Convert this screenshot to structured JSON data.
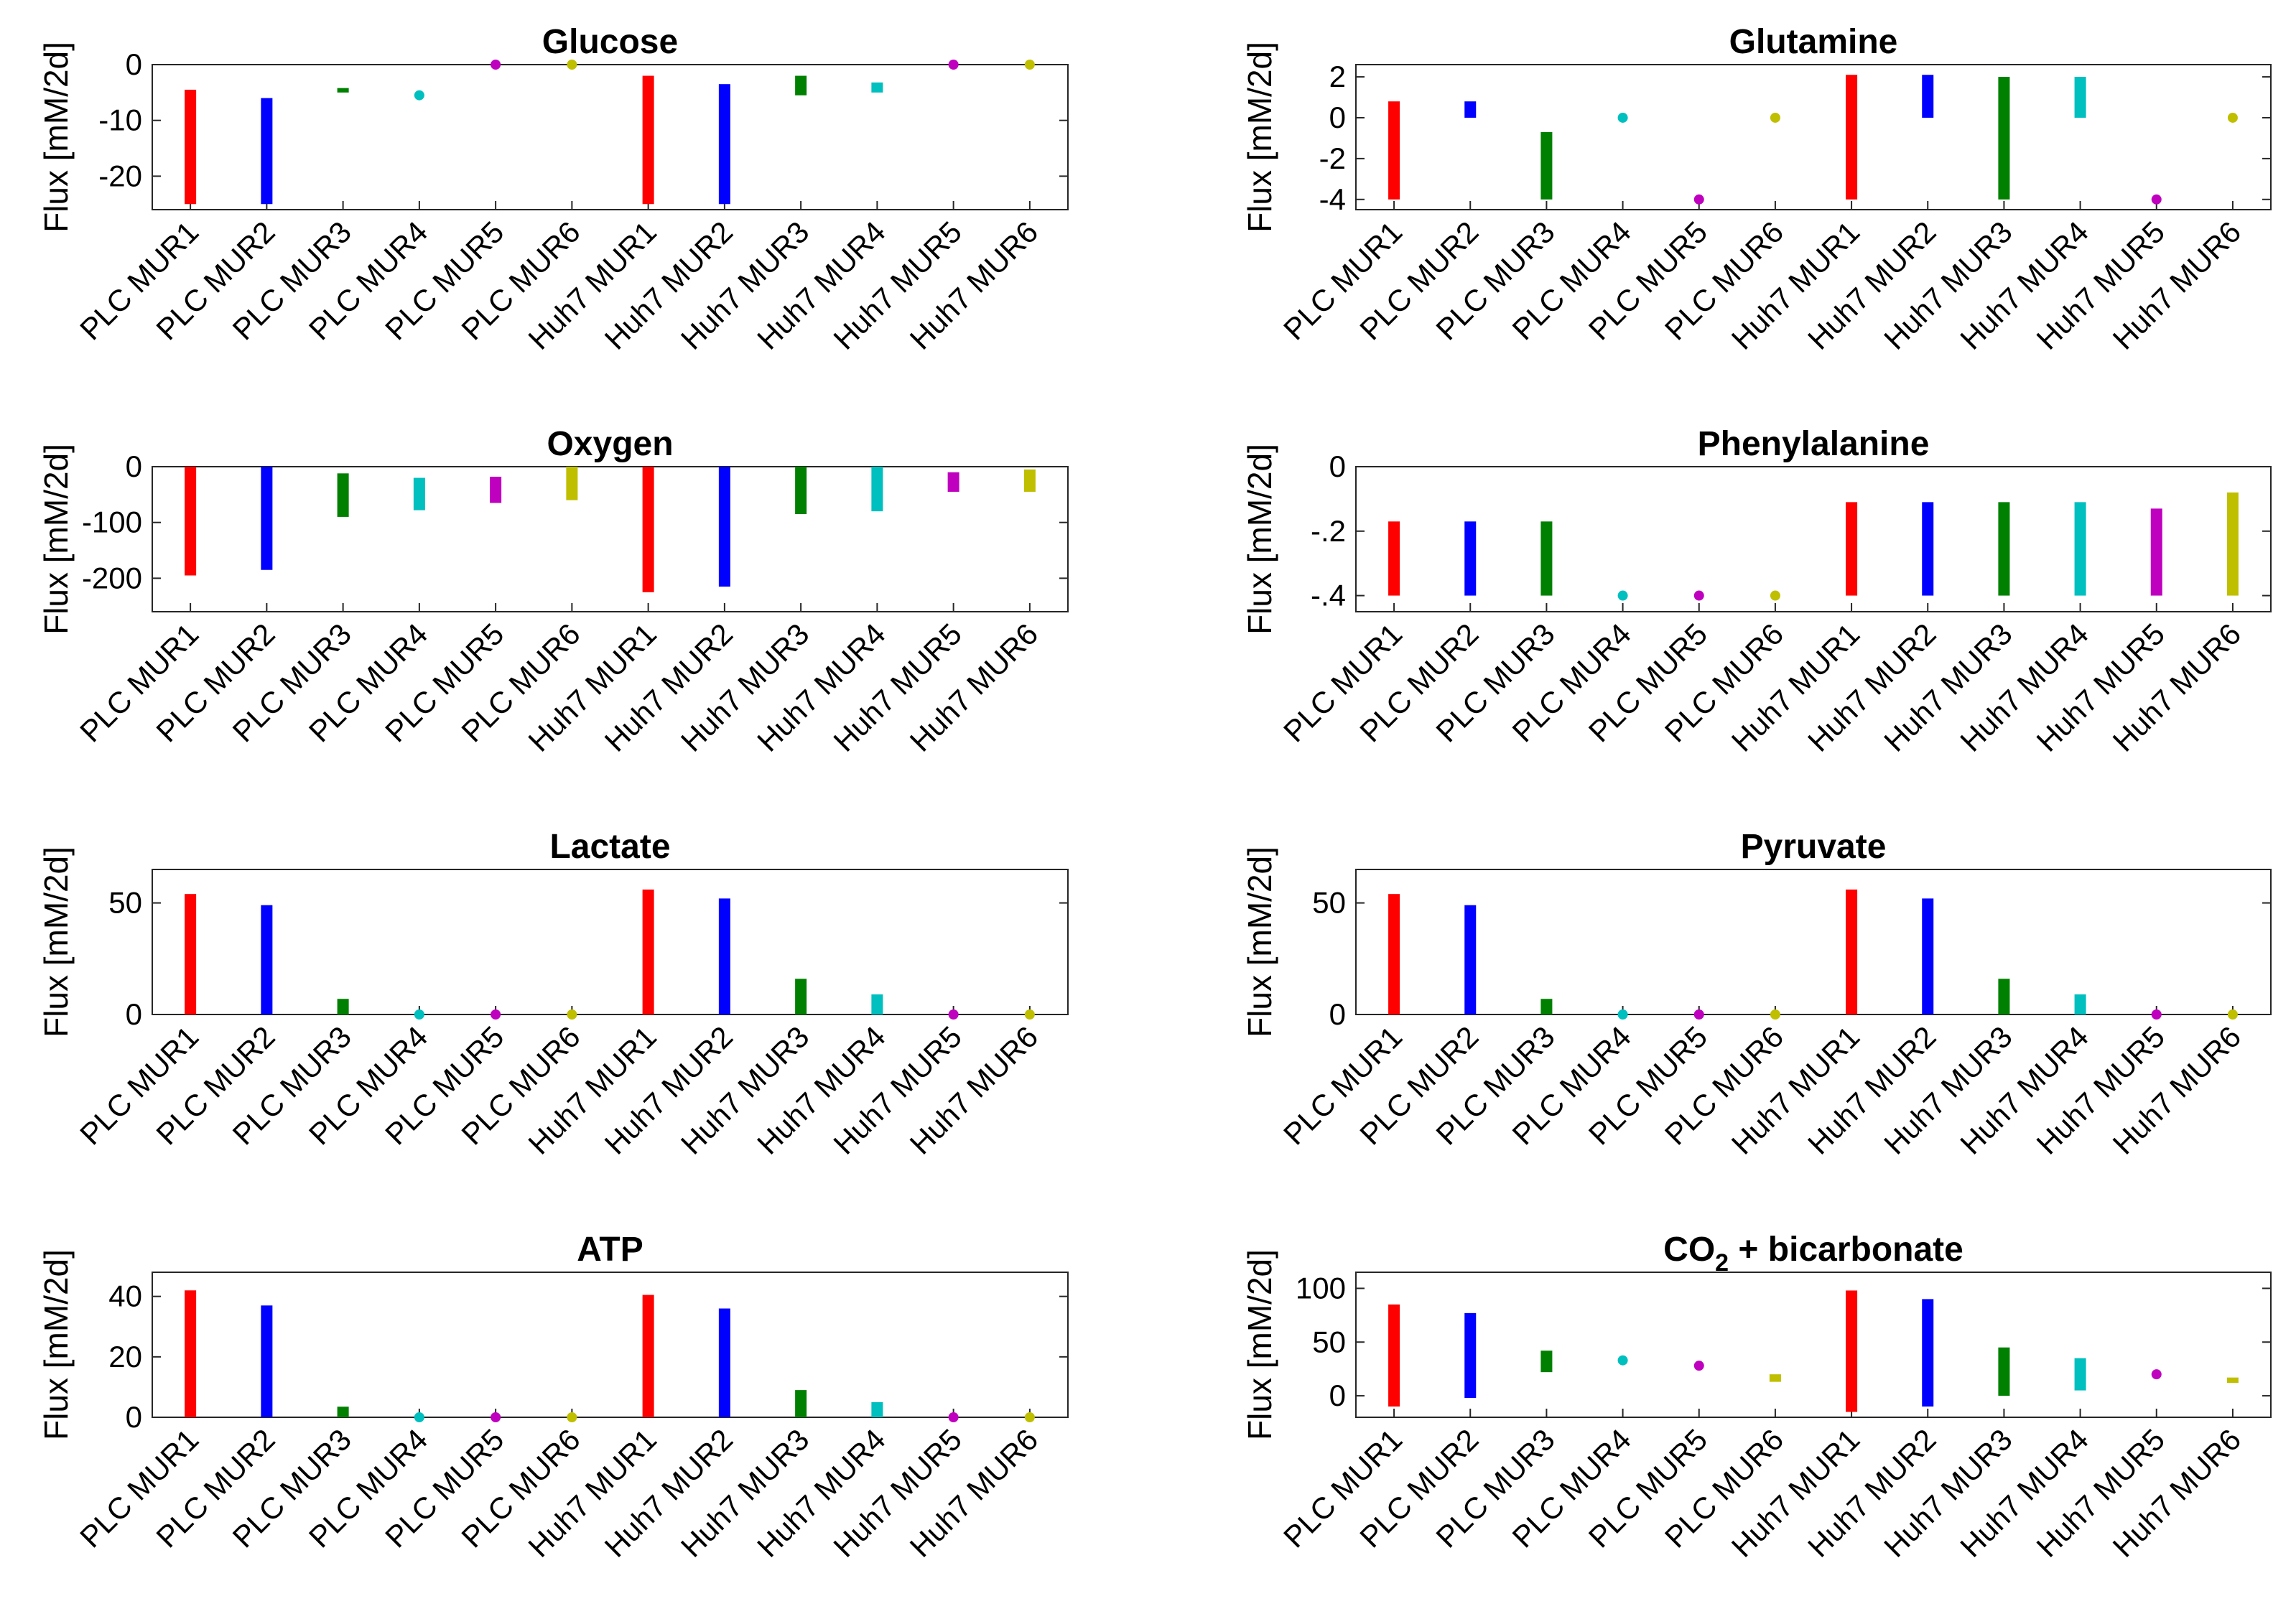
{
  "categories": [
    "PLC MUR1",
    "PLC MUR2",
    "PLC MUR3",
    "PLC MUR4",
    "PLC MUR5",
    "PLC MUR6",
    "Huh7 MUR1",
    "Huh7 MUR2",
    "Huh7 MUR3",
    "Huh7 MUR4",
    "Huh7 MUR5",
    "Huh7 MUR6"
  ],
  "colors": [
    "#ff0000",
    "#0000ff",
    "#008000",
    "#00bfbf",
    "#bf00bf",
    "#bfbf00",
    "#ff0000",
    "#0000ff",
    "#008000",
    "#00bfbf",
    "#bf00bf",
    "#bfbf00"
  ],
  "ylabel": "Flux [mM/2d]",
  "chart_data": [
    {
      "type": "range-bar",
      "title": "Glucose",
      "ylim": [
        -26,
        0
      ],
      "yticks": [
        0,
        -10,
        -20
      ],
      "ranges": [
        [
          -25,
          -4.5
        ],
        [
          -25,
          -6
        ],
        [
          -5,
          -4.2
        ],
        [
          -5.5,
          -5.5
        ],
        [
          0,
          0
        ],
        [
          0,
          0
        ],
        [
          -25,
          -2
        ],
        [
          -25,
          -3.5
        ],
        [
          -5.5,
          -2
        ],
        [
          -5,
          -3.2
        ],
        [
          0,
          0
        ],
        [
          0,
          0
        ]
      ]
    },
    {
      "type": "range-bar",
      "title": "Glutamine",
      "ylim": [
        -4.5,
        2.6
      ],
      "yticks": [
        2,
        0,
        -2,
        -4
      ],
      "ranges": [
        [
          -4,
          0.8
        ],
        [
          0,
          0.8
        ],
        [
          -4,
          -0.7
        ],
        [
          0,
          0
        ],
        [
          -4,
          -4
        ],
        [
          0,
          0
        ],
        [
          -4,
          2.1
        ],
        [
          0,
          2.1
        ],
        [
          -4,
          2
        ],
        [
          0,
          2
        ],
        [
          -4,
          -4
        ],
        [
          0,
          0
        ]
      ]
    },
    {
      "type": "range-bar",
      "title": "Oxygen",
      "ylim": [
        -260,
        0
      ],
      "yticks": [
        0,
        -100,
        -200
      ],
      "ranges": [
        [
          -195,
          0
        ],
        [
          -185,
          0
        ],
        [
          -90,
          -12
        ],
        [
          -78,
          -20
        ],
        [
          -65,
          -18
        ],
        [
          -60,
          0
        ],
        [
          -225,
          0
        ],
        [
          -215,
          0
        ],
        [
          -85,
          0
        ],
        [
          -80,
          0
        ],
        [
          -45,
          -10
        ],
        [
          -45,
          -5
        ]
      ]
    },
    {
      "type": "range-bar",
      "title": "Phenylalanine",
      "ylim": [
        -0.45,
        0
      ],
      "yticks": [
        0,
        -0.2,
        -0.4
      ],
      "ranges": [
        [
          -0.4,
          -0.17
        ],
        [
          -0.4,
          -0.17
        ],
        [
          -0.4,
          -0.17
        ],
        [
          -0.4,
          -0.4
        ],
        [
          -0.4,
          -0.4
        ],
        [
          -0.4,
          -0.4
        ],
        [
          -0.4,
          -0.11
        ],
        [
          -0.4,
          -0.11
        ],
        [
          -0.4,
          -0.11
        ],
        [
          -0.4,
          -0.11
        ],
        [
          -0.4,
          -0.13
        ],
        [
          -0.4,
          -0.08
        ]
      ]
    },
    {
      "type": "range-bar",
      "title": "Lactate",
      "ylim": [
        0,
        65
      ],
      "yticks": [
        0,
        50
      ],
      "ranges": [
        [
          0,
          54
        ],
        [
          0,
          49
        ],
        [
          0,
          7
        ],
        [
          0,
          0
        ],
        [
          0,
          0
        ],
        [
          0,
          0
        ],
        [
          0,
          56
        ],
        [
          0,
          52
        ],
        [
          0,
          16
        ],
        [
          0,
          9
        ],
        [
          0,
          0
        ],
        [
          0,
          0
        ]
      ]
    },
    {
      "type": "range-bar",
      "title": "Pyruvate",
      "ylim": [
        0,
        65
      ],
      "yticks": [
        0,
        50
      ],
      "ranges": [
        [
          0,
          54
        ],
        [
          0,
          49
        ],
        [
          0,
          7
        ],
        [
          0,
          0
        ],
        [
          0,
          0
        ],
        [
          0,
          0
        ],
        [
          0,
          56
        ],
        [
          0,
          52
        ],
        [
          0,
          16
        ],
        [
          0,
          9
        ],
        [
          0,
          0
        ],
        [
          0,
          0
        ]
      ]
    },
    {
      "type": "range-bar",
      "title": "ATP",
      "ylim": [
        0,
        48
      ],
      "yticks": [
        0,
        20,
        40
      ],
      "ranges": [
        [
          0,
          42
        ],
        [
          0,
          37
        ],
        [
          0,
          3.5
        ],
        [
          0,
          0
        ],
        [
          0,
          0
        ],
        [
          0,
          0
        ],
        [
          0,
          40.5
        ],
        [
          0,
          36
        ],
        [
          0,
          9
        ],
        [
          0,
          5
        ],
        [
          0,
          0
        ],
        [
          0,
          0
        ]
      ]
    },
    {
      "type": "range-bar",
      "title": "CO",
      "title_sub": "2",
      "title_rest": " + bicarbonate",
      "ylim": [
        -20,
        115
      ],
      "yticks": [
        100,
        50,
        0
      ],
      "ranges": [
        [
          -10,
          85
        ],
        [
          -2,
          77
        ],
        [
          22,
          42
        ],
        [
          33,
          33
        ],
        [
          28,
          28
        ],
        [
          13,
          20
        ],
        [
          -15,
          98
        ],
        [
          -10,
          90
        ],
        [
          0,
          45
        ],
        [
          5,
          35
        ],
        [
          20,
          20
        ],
        [
          12,
          17
        ]
      ]
    }
  ]
}
